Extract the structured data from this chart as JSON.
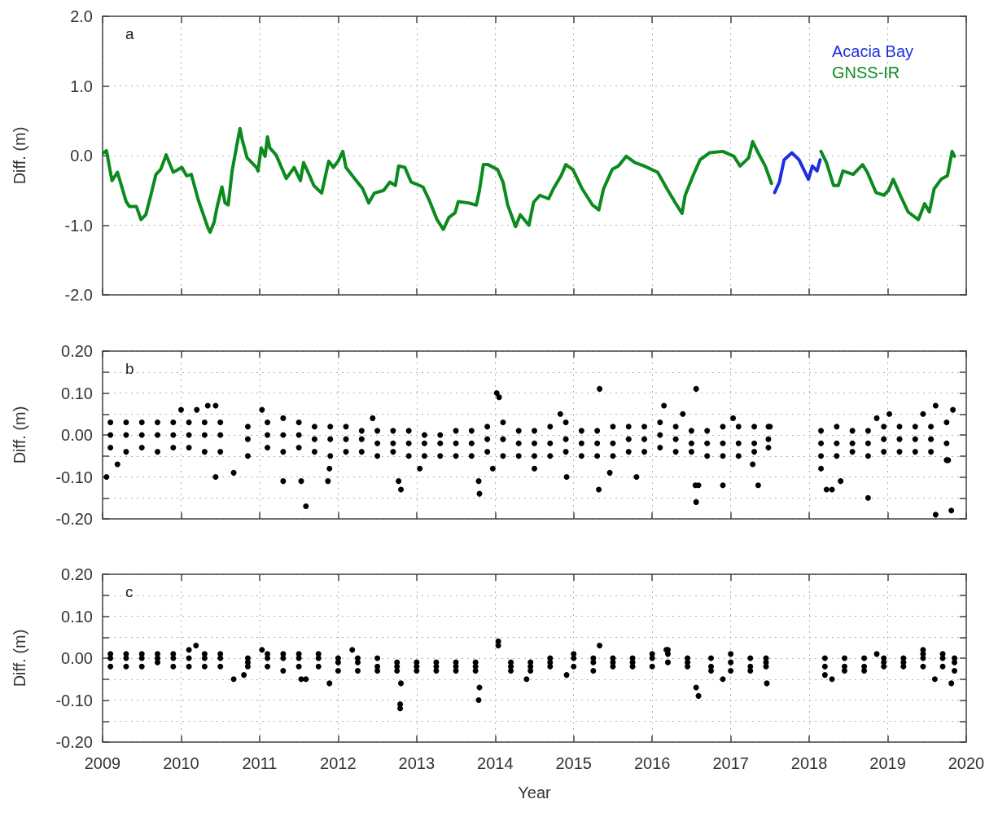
{
  "chart_data": [
    {
      "type": "line",
      "ylabel": "Diff. (m)",
      "annotations": [
        "a"
      ],
      "legend": "top right",
      "grid": true,
      "tick_labels": "y",
      "xlim": [
        2009,
        2020
      ],
      "xticks": [
        2009,
        2010,
        2011,
        2012,
        2013,
        2014,
        2015,
        2016,
        2017,
        2018,
        2019,
        2020
      ],
      "ylim": [
        -2,
        2
      ],
      "yticks": [
        {
          "value": -2,
          "label": "-2.0"
        },
        {
          "value": -1,
          "label": "-1.0"
        },
        {
          "value": 0,
          "label": "0.0"
        },
        {
          "value": 1,
          "label": "1.0"
        },
        {
          "value": 2,
          "label": "2.0"
        }
      ],
      "series": [
        {
          "name": "Acacia Bay",
          "color": "#1f2fe0",
          "x": [
            2017.56,
            2017.62,
            2017.68,
            2017.78,
            2017.87,
            2017.99,
            2018.04,
            2018.1,
            2018.14
          ],
          "values": [
            -0.53,
            -0.38,
            -0.06,
            0.04,
            -0.06,
            -0.34,
            -0.15,
            -0.22,
            -0.06
          ]
        },
        {
          "name": "GNSS-IR",
          "color": "#0b8a1e",
          "x": [
            2009.01,
            2009.05,
            2009.12,
            2009.19,
            2009.3,
            2009.34,
            2009.43,
            2009.49,
            2009.55,
            2009.61,
            2009.68,
            2009.74,
            2009.81,
            2009.86,
            2009.9,
            2010.01,
            2010.07,
            2010.13,
            2010.22,
            2010.34,
            2010.37,
            2010.42,
            2010.46,
            2010.52,
            2010.56,
            2010.6,
            2010.65,
            2010.71,
            2010.75,
            2010.78,
            2010.84,
            2010.96,
            2010.98,
            2011.02,
            2011.07,
            2011.1,
            2011.13,
            2011.21,
            2011.34,
            2011.44,
            2011.52,
            2011.56,
            2011.63,
            2011.69,
            2011.79,
            2011.88,
            2011.94,
            2012.0,
            2012.06,
            2012.1,
            2012.21,
            2012.31,
            2012.39,
            2012.46,
            2012.58,
            2012.66,
            2012.73,
            2012.77,
            2012.85,
            2012.93,
            2013.08,
            2013.16,
            2013.26,
            2013.34,
            2013.41,
            2013.49,
            2013.53,
            2013.66,
            2013.76,
            2013.8,
            2013.85,
            2013.91,
            2014.03,
            2014.1,
            2014.16,
            2014.26,
            2014.32,
            2014.43,
            2014.49,
            2014.57,
            2014.68,
            2014.74,
            2014.84,
            2014.9,
            2014.99,
            2015.11,
            2015.24,
            2015.32,
            2015.38,
            2015.49,
            2015.57,
            2015.67,
            2015.78,
            2015.9,
            2016.07,
            2016.19,
            2016.29,
            2016.38,
            2016.42,
            2016.52,
            2016.61,
            2016.73,
            2016.9,
            2017.04,
            2017.12,
            2017.23,
            2017.28,
            2017.35,
            2017.44,
            2017.52,
            2017.8,
            2018.15,
            2018.22,
            2018.31,
            2018.37,
            2018.43,
            2018.56,
            2018.68,
            2018.74,
            2018.85,
            2018.95,
            2019.01,
            2019.07,
            2019.16,
            2019.26,
            2019.39,
            2019.47,
            2019.53,
            2019.59,
            2019.68,
            2019.76,
            2019.82,
            2019.85
          ],
          "values": [
            0.04,
            0.07,
            -0.36,
            -0.24,
            -0.66,
            -0.73,
            -0.73,
            -0.92,
            -0.85,
            -0.59,
            -0.27,
            -0.2,
            0.01,
            -0.13,
            -0.24,
            -0.17,
            -0.29,
            -0.27,
            -0.64,
            -1.03,
            -1.1,
            -0.96,
            -0.73,
            -0.45,
            -0.68,
            -0.71,
            -0.22,
            0.15,
            0.39,
            0.22,
            -0.03,
            -0.17,
            -0.22,
            0.11,
            -0.01,
            0.27,
            0.11,
            0.01,
            -0.33,
            -0.17,
            -0.36,
            -0.1,
            -0.27,
            -0.43,
            -0.54,
            -0.08,
            -0.17,
            -0.08,
            0.06,
            -0.17,
            -0.33,
            -0.47,
            -0.68,
            -0.54,
            -0.5,
            -0.38,
            -0.43,
            -0.15,
            -0.17,
            -0.38,
            -0.45,
            -0.64,
            -0.92,
            -1.06,
            -0.89,
            -0.82,
            -0.66,
            -0.68,
            -0.71,
            -0.5,
            -0.13,
            -0.13,
            -0.2,
            -0.38,
            -0.71,
            -1.02,
            -0.85,
            -1.0,
            -0.67,
            -0.57,
            -0.62,
            -0.48,
            -0.29,
            -0.13,
            -0.2,
            -0.48,
            -0.71,
            -0.78,
            -0.48,
            -0.2,
            -0.15,
            -0.01,
            -0.1,
            -0.15,
            -0.24,
            -0.48,
            -0.67,
            -0.83,
            -0.57,
            -0.29,
            -0.06,
            0.04,
            0.06,
            -0.01,
            -0.15,
            -0.03,
            0.2,
            0.04,
            -0.15,
            -0.4,
            null,
            0.06,
            -0.1,
            -0.43,
            -0.43,
            -0.22,
            -0.27,
            -0.13,
            -0.24,
            -0.53,
            -0.57,
            -0.5,
            -0.34,
            -0.57,
            -0.81,
            -0.92,
            -0.69,
            -0.81,
            -0.48,
            -0.34,
            -0.29,
            0.06,
            -0.01
          ]
        }
      ]
    },
    {
      "type": "scatter",
      "ylabel": "Diff. (m)",
      "annotations": [
        "b"
      ],
      "grid": true,
      "tick_labels": "y",
      "marker": "circle",
      "xlim": [
        2009,
        2020
      ],
      "xticks": [
        2009,
        2010,
        2011,
        2012,
        2013,
        2014,
        2015,
        2016,
        2017,
        2018,
        2019,
        2020
      ],
      "ylim": [
        -0.2,
        0.2
      ],
      "yticks": [
        {
          "value": -0.2,
          "label": "-0.20"
        },
        {
          "value": -0.15,
          "label": null
        },
        {
          "value": -0.1,
          "label": "-0.10"
        },
        {
          "value": -0.05,
          "label": null
        },
        {
          "value": 0,
          "label": "0.00"
        },
        {
          "value": 0.05,
          "label": null
        },
        {
          "value": 0.1,
          "label": "0.10"
        },
        {
          "value": 0.15,
          "label": null
        },
        {
          "value": 0.2,
          "label": "0.20"
        }
      ],
      "series": [
        {
          "color": "#000000",
          "x": [
            2009.05,
            2009.19,
            2010.0,
            2010.2,
            2010.34,
            2010.44,
            2010.44,
            2010.67,
            2011.03,
            2011.3,
            2011.53,
            2011.59,
            2011.87,
            2011.89,
            2012.44,
            2012.77,
            2012.8,
            2013.04,
            2013.79,
            2013.8,
            2013.97,
            2014.02,
            2014.05,
            2014.5,
            2014.83,
            2014.91,
            2015.32,
            2015.33,
            2015.46,
            2015.8,
            2016.15,
            2016.39,
            2016.55,
            2016.56,
            2016.56,
            2016.59,
            2016.9,
            2017.03,
            2017.28,
            2017.35,
            2017.5,
            2018.15,
            2018.22,
            2018.29,
            2018.4,
            2018.75,
            2018.86,
            2019.02,
            2019.45,
            2019.61,
            2019.61,
            2019.77,
            2019.81,
            2019.83,
            2009.1,
            2009.1,
            2009.1,
            2009.3,
            2009.3,
            2009.3,
            2009.5,
            2009.5,
            2009.5,
            2009.7,
            2009.7,
            2009.7,
            2009.9,
            2009.9,
            2009.9,
            2010.1,
            2010.1,
            2010.1,
            2010.3,
            2010.3,
            2010.3,
            2010.5,
            2010.5,
            2010.5,
            2010.85,
            2010.85,
            2010.85,
            2011.1,
            2011.1,
            2011.1,
            2011.3,
            2011.3,
            2011.3,
            2011.5,
            2011.5,
            2011.5,
            2011.7,
            2011.7,
            2011.7,
            2011.9,
            2011.9,
            2011.9,
            2012.1,
            2012.1,
            2012.1,
            2012.3,
            2012.3,
            2012.3,
            2012.5,
            2012.5,
            2012.5,
            2012.7,
            2012.7,
            2012.7,
            2012.9,
            2012.9,
            2012.9,
            2013.1,
            2013.1,
            2013.1,
            2013.3,
            2013.3,
            2013.3,
            2013.5,
            2013.5,
            2013.5,
            2013.7,
            2013.7,
            2013.7,
            2013.9,
            2013.9,
            2013.9,
            2014.1,
            2014.1,
            2014.1,
            2014.3,
            2014.3,
            2014.3,
            2014.5,
            2014.5,
            2014.5,
            2014.7,
            2014.7,
            2014.7,
            2014.9,
            2014.9,
            2014.9,
            2015.1,
            2015.1,
            2015.1,
            2015.3,
            2015.3,
            2015.3,
            2015.5,
            2015.5,
            2015.5,
            2015.7,
            2015.7,
            2015.7,
            2015.9,
            2015.9,
            2015.9,
            2016.1,
            2016.1,
            2016.1,
            2016.3,
            2016.3,
            2016.3,
            2016.5,
            2016.5,
            2016.5,
            2016.7,
            2016.7,
            2016.7,
            2016.9,
            2016.9,
            2016.9,
            2017.1,
            2017.1,
            2017.1,
            2017.3,
            2017.3,
            2017.3,
            2017.48,
            2017.48,
            2017.48,
            2018.15,
            2018.15,
            2018.15,
            2018.35,
            2018.35,
            2018.35,
            2018.55,
            2018.55,
            2018.55,
            2018.75,
            2018.75,
            2018.75,
            2018.95,
            2018.95,
            2018.95,
            2019.15,
            2019.15,
            2019.15,
            2019.35,
            2019.35,
            2019.35,
            2019.55,
            2019.55,
            2019.55,
            2019.75,
            2019.75,
            2019.75
          ],
          "values": [
            -0.1,
            -0.07,
            0.06,
            0.06,
            0.07,
            0.07,
            -0.1,
            -0.09,
            0.06,
            -0.11,
            -0.11,
            -0.17,
            -0.11,
            -0.08,
            0.04,
            -0.11,
            -0.13,
            -0.08,
            -0.11,
            -0.14,
            -0.08,
            0.1,
            0.09,
            -0.08,
            0.05,
            -0.1,
            -0.13,
            0.11,
            -0.09,
            -0.1,
            0.07,
            0.05,
            -0.12,
            0.11,
            -0.16,
            -0.12,
            -0.12,
            0.04,
            -0.07,
            -0.12,
            0.02,
            -0.08,
            -0.13,
            -0.13,
            -0.11,
            -0.15,
            0.04,
            0.05,
            0.05,
            0.07,
            -0.19,
            -0.06,
            -0.18,
            0.06,
            0.03,
            0.0,
            -0.03,
            0.03,
            0.0,
            -0.04,
            0.03,
            0.0,
            -0.03,
            0.03,
            0.0,
            -0.04,
            0.03,
            0.0,
            -0.03,
            0.03,
            0.0,
            -0.03,
            0.03,
            0.0,
            -0.04,
            0.03,
            0.0,
            -0.04,
            0.02,
            -0.01,
            -0.05,
            0.03,
            0.0,
            -0.03,
            0.04,
            0.0,
            -0.04,
            0.03,
            0.0,
            -0.03,
            0.02,
            -0.01,
            -0.04,
            0.02,
            -0.01,
            -0.05,
            0.02,
            -0.01,
            -0.04,
            0.01,
            -0.01,
            -0.04,
            0.01,
            -0.02,
            -0.05,
            0.01,
            -0.02,
            -0.04,
            0.01,
            -0.02,
            -0.05,
            0.0,
            -0.02,
            -0.05,
            0.0,
            -0.02,
            -0.05,
            0.01,
            -0.02,
            -0.05,
            0.01,
            -0.02,
            -0.05,
            0.02,
            -0.01,
            -0.04,
            0.03,
            -0.01,
            -0.05,
            0.01,
            -0.02,
            -0.05,
            0.01,
            -0.02,
            -0.05,
            0.02,
            -0.02,
            -0.05,
            0.03,
            -0.01,
            -0.04,
            0.01,
            -0.02,
            -0.05,
            0.01,
            -0.02,
            -0.05,
            0.02,
            -0.02,
            -0.05,
            0.02,
            -0.01,
            -0.04,
            0.02,
            -0.01,
            -0.04,
            0.03,
            0.0,
            -0.03,
            0.02,
            -0.01,
            -0.04,
            0.01,
            -0.02,
            -0.04,
            0.01,
            -0.02,
            -0.05,
            0.02,
            -0.02,
            -0.05,
            0.02,
            -0.02,
            -0.05,
            0.02,
            -0.02,
            -0.04,
            0.02,
            -0.01,
            -0.03,
            0.01,
            -0.02,
            -0.05,
            0.02,
            -0.02,
            -0.05,
            0.01,
            -0.02,
            -0.04,
            0.01,
            -0.02,
            -0.05,
            0.02,
            -0.01,
            -0.04,
            0.02,
            -0.01,
            -0.04,
            0.02,
            -0.01,
            -0.04,
            0.02,
            -0.01,
            -0.04,
            0.03,
            -0.02,
            -0.06
          ]
        }
      ]
    },
    {
      "type": "scatter",
      "ylabel": "Diff. (m)",
      "xlabel": "Year",
      "annotations": [
        "c"
      ],
      "grid": true,
      "marker": "circle",
      "xlim": [
        2009,
        2020
      ],
      "xticks": [
        2009,
        2010,
        2011,
        2012,
        2013,
        2014,
        2015,
        2016,
        2017,
        2018,
        2019,
        2020
      ],
      "ylim": [
        -0.2,
        0.2
      ],
      "yticks": [
        {
          "value": -0.2,
          "label": "-0.20"
        },
        {
          "value": -0.15,
          "label": null
        },
        {
          "value": -0.1,
          "label": "-0.10"
        },
        {
          "value": -0.05,
          "label": null
        },
        {
          "value": 0,
          "label": "0.00"
        },
        {
          "value": 0.05,
          "label": null
        },
        {
          "value": 0.1,
          "label": "0.10"
        },
        {
          "value": 0.15,
          "label": null
        },
        {
          "value": 0.2,
          "label": "0.20"
        }
      ],
      "series": [
        {
          "color": "#000000",
          "x": [
            2010.19,
            2010.67,
            2010.8,
            2011.03,
            2011.53,
            2011.59,
            2011.89,
            2012.18,
            2012.79,
            2012.79,
            2012.8,
            2013.79,
            2013.8,
            2014.04,
            2014.04,
            2014.4,
            2014.91,
            2015.33,
            2016.18,
            2016.56,
            2016.59,
            2016.9,
            2017.46,
            2018.29,
            2018.86,
            2019.45,
            2019.6,
            2019.81,
            2009.1,
            2009.1,
            2009.1,
            2009.3,
            2009.3,
            2009.3,
            2009.5,
            2009.5,
            2009.5,
            2009.7,
            2009.7,
            2009.7,
            2009.9,
            2009.9,
            2009.9,
            2010.1,
            2010.1,
            2010.1,
            2010.3,
            2010.3,
            2010.3,
            2010.5,
            2010.5,
            2010.5,
            2010.85,
            2010.85,
            2010.85,
            2011.1,
            2011.1,
            2011.1,
            2011.3,
            2011.3,
            2011.3,
            2011.5,
            2011.5,
            2011.5,
            2011.75,
            2011.75,
            2011.75,
            2012.0,
            2012.0,
            2012.0,
            2012.25,
            2012.25,
            2012.25,
            2012.5,
            2012.5,
            2012.5,
            2012.75,
            2012.75,
            2012.75,
            2013.0,
            2013.0,
            2013.0,
            2013.25,
            2013.25,
            2013.25,
            2013.5,
            2013.5,
            2013.5,
            2013.75,
            2013.75,
            2013.75,
            2014.2,
            2014.2,
            2014.2,
            2014.45,
            2014.45,
            2014.45,
            2014.7,
            2014.7,
            2014.7,
            2015.0,
            2015.0,
            2015.0,
            2015.25,
            2015.25,
            2015.25,
            2015.5,
            2015.5,
            2015.5,
            2015.75,
            2015.75,
            2015.75,
            2016.0,
            2016.0,
            2016.0,
            2016.2,
            2016.2,
            2016.2,
            2016.45,
            2016.45,
            2016.45,
            2016.75,
            2016.75,
            2016.75,
            2017.0,
            2017.0,
            2017.0,
            2017.25,
            2017.25,
            2017.25,
            2017.45,
            2017.45,
            2017.45,
            2018.2,
            2018.2,
            2018.2,
            2018.45,
            2018.45,
            2018.45,
            2018.7,
            2018.7,
            2018.7,
            2018.95,
            2018.95,
            2018.95,
            2019.2,
            2019.2,
            2019.2,
            2019.45,
            2019.45,
            2019.45,
            2019.7,
            2019.7,
            2019.7,
            2019.85,
            2019.85,
            2019.85
          ],
          "values": [
            0.03,
            -0.05,
            -0.04,
            0.02,
            -0.05,
            -0.05,
            -0.06,
            0.02,
            -0.11,
            -0.12,
            -0.06,
            -0.1,
            -0.07,
            0.04,
            0.03,
            -0.05,
            -0.04,
            0.03,
            0.02,
            -0.07,
            -0.09,
            -0.05,
            -0.06,
            -0.05,
            0.01,
            0.02,
            -0.05,
            -0.06,
            0.01,
            0.0,
            -0.02,
            0.01,
            0.0,
            -0.02,
            0.01,
            0.0,
            -0.02,
            0.01,
            0.0,
            -0.01,
            0.01,
            0.0,
            -0.02,
            0.02,
            0.0,
            -0.02,
            0.01,
            0.0,
            -0.02,
            0.01,
            0.0,
            -0.02,
            0.0,
            -0.01,
            -0.02,
            0.01,
            0.0,
            -0.02,
            0.01,
            0.0,
            -0.03,
            0.01,
            0.0,
            -0.02,
            0.01,
            0.0,
            -0.02,
            0.0,
            -0.01,
            -0.03,
            0.0,
            -0.01,
            -0.03,
            0.0,
            -0.02,
            -0.03,
            -0.01,
            -0.02,
            -0.03,
            -0.01,
            -0.02,
            -0.03,
            -0.01,
            -0.02,
            -0.03,
            -0.01,
            -0.02,
            -0.03,
            -0.01,
            -0.02,
            -0.03,
            -0.01,
            -0.02,
            -0.03,
            -0.01,
            -0.02,
            -0.03,
            0.0,
            -0.01,
            -0.02,
            0.01,
            0.0,
            -0.02,
            0.0,
            -0.01,
            -0.03,
            0.0,
            -0.01,
            -0.02,
            0.0,
            -0.01,
            -0.02,
            0.01,
            0.0,
            -0.02,
            0.02,
            0.01,
            -0.01,
            0.0,
            -0.01,
            -0.02,
            0.0,
            -0.02,
            -0.03,
            0.01,
            -0.01,
            -0.03,
            0.0,
            -0.02,
            -0.03,
            0.0,
            -0.01,
            -0.02,
            0.0,
            -0.02,
            -0.04,
            0.0,
            -0.02,
            -0.03,
            0.0,
            -0.02,
            -0.03,
            0.0,
            -0.01,
            -0.02,
            0.0,
            -0.01,
            -0.02,
            0.01,
            0.0,
            -0.02,
            0.01,
            0.0,
            -0.02,
            0.0,
            -0.01,
            -0.03
          ]
        }
      ]
    }
  ]
}
